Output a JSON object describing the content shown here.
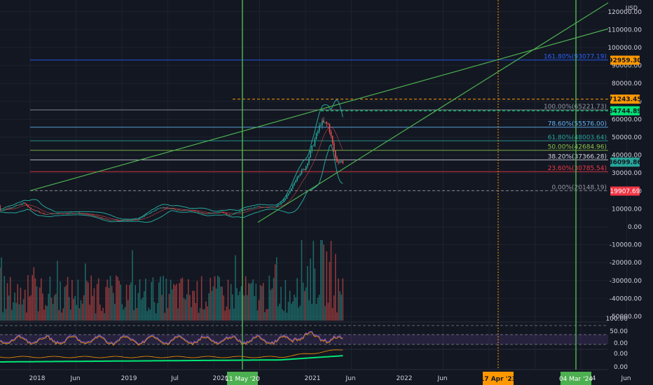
{
  "currency": "USD",
  "colors": {
    "background": "#131722",
    "grid": "#1e222d",
    "up": "#26a69a",
    "down": "#ef5350",
    "trendline": "#4caf50",
    "bollinger": "#26a69a",
    "fib_blue": "#2962ff",
    "fib_light_blue": "#64b5f6",
    "fib_teal": "#26a69a",
    "fib_green": "#8bc34a",
    "fib_white": "#d1d4dc",
    "fib_red": "#f23645",
    "orange": "#ff9800",
    "rsi": "#7e57c2"
  },
  "chart_data": {
    "type": "candlestick",
    "price_axis": {
      "ticks": [
        "120000.00",
        "110000.00",
        "100000.00",
        "90000.00",
        "80000.00",
        "70000.00",
        "60000.00",
        "50000.00",
        "40000.00",
        "30000.00",
        "20000.00",
        "10000.00",
        "0.00",
        "-10000.00",
        "-20000.00",
        "-30000.00",
        "-40000.00",
        "-50000.00"
      ],
      "ylim": [
        -50000,
        120000
      ]
    },
    "time_axis": {
      "ticks": [
        "2018",
        "Jun",
        "2019",
        "Jul",
        "2020",
        "2021",
        "Jun",
        "2022",
        "Jun",
        "2023",
        "2024",
        "Jun"
      ],
      "highlighted": [
        "11 May '20",
        "17 Apr '23",
        "04 Mar '24"
      ]
    },
    "fib_levels": [
      {
        "label": "161.80%(93077.19)",
        "ratio": 1.618,
        "value": 93077.19,
        "color": "#2962ff"
      },
      {
        "label": "100.00%(65221.73)",
        "ratio": 1.0,
        "value": 65221.73,
        "color": "#9598a1"
      },
      {
        "label": "78.60%(55576.00)",
        "ratio": 0.786,
        "value": 55576.0,
        "color": "#64b5f6"
      },
      {
        "label": "61.80%(48003.64)",
        "ratio": 0.618,
        "value": 48003.64,
        "color": "#26a69a"
      },
      {
        "label": "50.00%(42684.96)",
        "ratio": 0.5,
        "value": 42684.96,
        "color": "#8bc34a"
      },
      {
        "label": "38.20%(37366.28)",
        "ratio": 0.382,
        "value": 37366.28,
        "color": "#d1d4dc"
      },
      {
        "label": "23.60%(30785.54)",
        "ratio": 0.236,
        "value": 30785.54,
        "color": "#f23645"
      },
      {
        "label": "0.00%(20148.19)",
        "ratio": 0.0,
        "value": 20148.19,
        "color": "#9598a1"
      }
    ],
    "price_tags": [
      {
        "label": "92959.30",
        "value": 92959.3,
        "color": "#ff9800"
      },
      {
        "label": "71243.45",
        "value": 71243.45,
        "color": "#ff9800"
      },
      {
        "label": "64744.89",
        "value": 64744.89,
        "color": "#00e676"
      },
      {
        "label": "36099.86",
        "value": 36099.86,
        "color": "#26a69a"
      },
      {
        "label": "19907.69",
        "value": 19907.69,
        "color": "#f23645"
      }
    ],
    "sub_panels": {
      "rsi_ticks": [
        "100.00",
        "50.00",
        "0.00"
      ],
      "osc_ticks": [
        "0.00",
        "0.00"
      ]
    },
    "series": [
      {
        "name": "Price (approx. monthly close)",
        "x": [
          "2017-12",
          "2018-01",
          "2018-03",
          "2018-05",
          "2018-07",
          "2018-09",
          "2018-11",
          "2019-01",
          "2019-03",
          "2019-05",
          "2019-06",
          "2019-08",
          "2019-10",
          "2019-12",
          "2020-02",
          "2020-03",
          "2020-05",
          "2020-07",
          "2020-09",
          "2020-10",
          "2020-11",
          "2020-12",
          "2021-01",
          "2021-02",
          "2021-03",
          "2021-04",
          "2021-05",
          "2021-06"
        ],
        "values": [
          14000,
          10000,
          7000,
          7500,
          7700,
          6600,
          4000,
          3500,
          4100,
          8500,
          11000,
          9600,
          9200,
          7200,
          8600,
          6400,
          9500,
          11300,
          10800,
          13800,
          19700,
          29000,
          33000,
          46000,
          58000,
          57000,
          37000,
          36100
        ]
      }
    ]
  }
}
